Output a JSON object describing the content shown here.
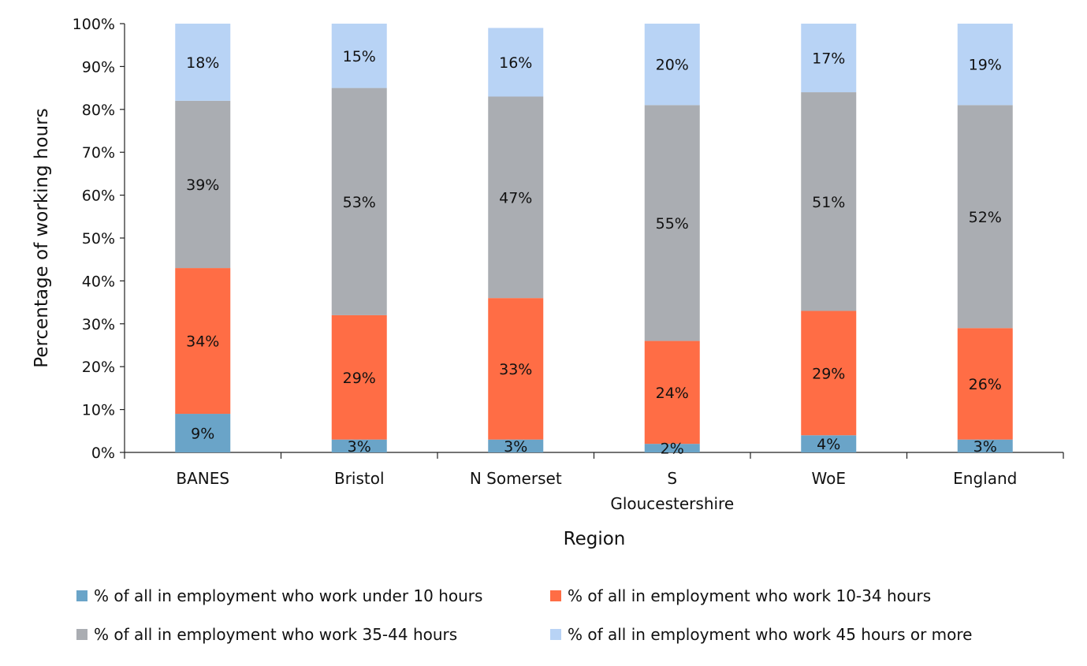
{
  "chart_data": {
    "type": "bar",
    "stacked": true,
    "percent": true,
    "title": "",
    "xlabel": "Region",
    "ylabel": "Percentage of working hours",
    "ylim": [
      0,
      100
    ],
    "yticks": [
      "0%",
      "10%",
      "20%",
      "30%",
      "40%",
      "50%",
      "60%",
      "70%",
      "80%",
      "90%",
      "100%"
    ],
    "categories": [
      "BANES",
      "Bristol",
      "N Somerset",
      "S Gloucestershire",
      "WoE",
      "England"
    ],
    "category_lines": [
      [
        "BANES"
      ],
      [
        "Bristol"
      ],
      [
        "N Somerset"
      ],
      [
        "S",
        "Gloucestershire"
      ],
      [
        "WoE"
      ],
      [
        "England"
      ]
    ],
    "series": [
      {
        "name": "% of all in employment who work under 10 hours",
        "color": "#6aa4c8",
        "values": [
          9,
          3,
          3,
          2,
          4,
          3
        ],
        "labels": [
          "9%",
          "3%",
          "3%",
          "2%",
          "4%",
          "3%"
        ]
      },
      {
        "name": "% of all in employment who work 10-34 hours",
        "color": "#ff6d45",
        "values": [
          34,
          29,
          33,
          24,
          29,
          26
        ],
        "labels": [
          "34%",
          "29%",
          "33%",
          "24%",
          "29%",
          "26%"
        ]
      },
      {
        "name": "% of all in employment who work 35-44 hours",
        "color": "#aaadb2",
        "values": [
          39,
          53,
          47,
          55,
          51,
          52
        ],
        "labels": [
          "39%",
          "53%",
          "47%",
          "55%",
          "51%",
          "52%"
        ]
      },
      {
        "name": "% of all in employment who work 45 hours or more",
        "color": "#b8d3f5",
        "values": [
          18,
          15,
          16,
          20,
          17,
          19
        ],
        "labels": [
          "18%",
          "15%",
          "16%",
          "20%",
          "17%",
          "19%"
        ]
      }
    ],
    "grid": false,
    "legend_position": "bottom"
  }
}
